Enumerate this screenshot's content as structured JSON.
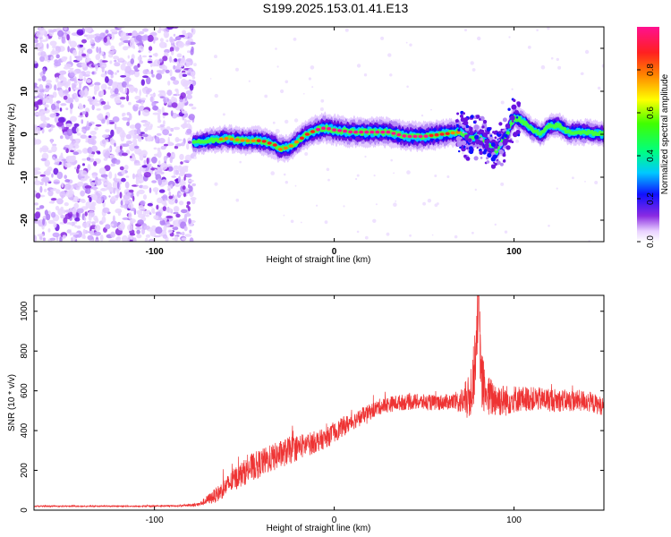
{
  "title": "S199.2025.153.01.41.E13",
  "chart_data": [
    {
      "type": "heatmap",
      "xlabel": "Height of straight line (km)",
      "ylabel": "Frequency (Hz)",
      "xlim": [
        -167,
        150
      ],
      "ylim": [
        -25,
        25
      ],
      "xticks": [
        -100,
        0,
        100
      ],
      "xtick_labels": [
        "-100",
        "0",
        "100"
      ],
      "yticks": [
        -20,
        -10,
        0,
        10,
        20
      ],
      "ytick_labels": [
        "-20",
        "-10",
        "0",
        "10",
        "20"
      ],
      "colorbar": {
        "label": "Normalized spectral amplitude",
        "range": [
          0,
          1
        ],
        "ticks": [
          0.0,
          0.2,
          0.4,
          0.6,
          0.8
        ],
        "tick_labels": [
          "0.0",
          "0.2",
          "0.4",
          "0.6",
          "0.8"
        ]
      },
      "noise_region": {
        "x": [
          -167,
          -78
        ]
      },
      "ridge": {
        "x": [
          -78,
          -70,
          -60,
          -50,
          -40,
          -33,
          -30,
          -25,
          -20,
          -15,
          -10,
          -5,
          0,
          10,
          20,
          30,
          40,
          50,
          60,
          70,
          75,
          80,
          85,
          90,
          95,
          100,
          105,
          110,
          115,
          120,
          125,
          130,
          140,
          150
        ],
        "freq": [
          -2,
          -1.5,
          -1,
          -1.5,
          -1.5,
          -2.5,
          -3.5,
          -3,
          -1.5,
          0,
          1,
          1.5,
          1,
          0.5,
          0.5,
          0.5,
          -0.5,
          -0.5,
          0,
          0.5,
          -1,
          -0.5,
          -2,
          -4,
          -1,
          4,
          3,
          1,
          0,
          2,
          2,
          0.5,
          0.5,
          0
        ],
        "amplitude": [
          0.45,
          0.6,
          0.7,
          0.75,
          0.8,
          0.8,
          0.75,
          0.7,
          0.8,
          0.85,
          0.9,
          0.95,
          0.95,
          0.95,
          0.95,
          0.9,
          0.9,
          0.9,
          0.85,
          0.7,
          0.55,
          0.5,
          0.55,
          0.55,
          0.5,
          0.6,
          0.6,
          0.55,
          0.55,
          0.55,
          0.6,
          0.6,
          0.65,
          0.6
        ]
      }
    },
    {
      "type": "line",
      "xlabel": "Height of straight line (km)",
      "ylabel": "SNR (10 * v/v)",
      "xlim": [
        -167,
        150
      ],
      "ylim": [
        0,
        1080
      ],
      "xticks": [
        -100,
        0,
        100
      ],
      "xtick_labels": [
        "-100",
        "0",
        "100"
      ],
      "yticks": [
        0,
        200,
        400,
        600,
        800,
        1000
      ],
      "ytick_labels": [
        "0",
        "200",
        "400",
        "600",
        "800",
        "1000"
      ],
      "series": [
        {
          "color": "#ee3333",
          "envelope_x": [
            -167,
            -140,
            -110,
            -85,
            -75,
            -65,
            -55,
            -45,
            -35,
            -25,
            -15,
            -5,
            5,
            15,
            25,
            35,
            45,
            55,
            65,
            70,
            75,
            78,
            80,
            82,
            85,
            90,
            95,
            100,
            110,
            120,
            130,
            140,
            150
          ],
          "envelope_y": [
            20,
            20,
            20,
            22,
            30,
            80,
            160,
            220,
            260,
            300,
            330,
            360,
            420,
            470,
            520,
            540,
            545,
            540,
            545,
            545,
            560,
            700,
            1060,
            650,
            570,
            560,
            550,
            560,
            560,
            555,
            550,
            550,
            520
          ],
          "noise_amplitude": [
            3,
            3,
            3,
            4,
            10,
            40,
            60,
            70,
            70,
            70,
            60,
            50,
            50,
            40,
            40,
            40,
            40,
            40,
            40,
            60,
            120,
            160,
            200,
            150,
            110,
            90,
            80,
            70,
            60,
            60,
            55,
            55,
            45
          ]
        }
      ]
    }
  ]
}
